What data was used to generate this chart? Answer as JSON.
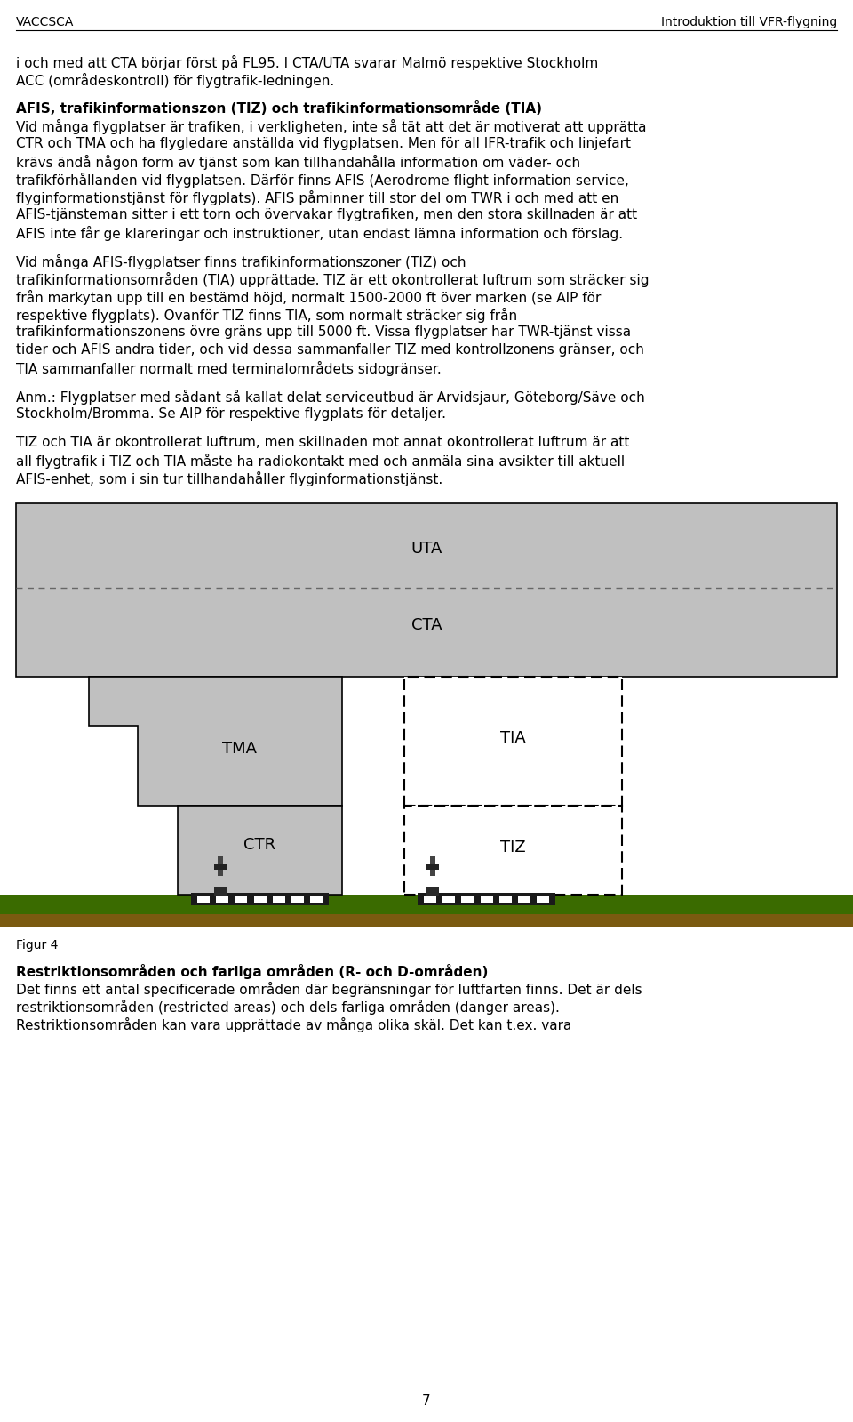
{
  "header_left": "VACCSCA",
  "header_right": "Introduktion till VFR-flygning",
  "page_number": "7",
  "figur_label": "Figur 4",
  "bg_color": "#ffffff",
  "text_color": "#000000",
  "gray_color": "#c0c0c0",
  "ground_green": "#3a6b00",
  "ground_brown": "#7a5a10",
  "p1_lines": [
    "i och med att CTA börjar först på FL95. I CTA/UTA svarar Malmö respektive Stockholm",
    "ACC (områdeskontroll) för flygtrafik­ledningen."
  ],
  "section1_title": "AFIS, trafikinformationszon (TIZ) och trafikinformationsområde (TIA)",
  "section1_lines": [
    "Vid många flygplatser är trafiken, i verkligheten, inte så tät att det är motiverat att upprätta",
    "CTR och TMA och ha flygledare anställda vid flygplatsen. Men för all IFR-trafik och linjefart",
    "krävs ändå någon form av tjänst som kan tillhandahålla information om väder- och",
    "trafikförhållanden vid flygplatsen. Därför finns AFIS (Aerodrome flight information service,",
    "flyginformationstjänst för flygplats). AFIS påminner till stor del om TWR i och med att en",
    "AFIS-tjänsteman sitter i ett torn och övervakar flygtrafiken, men den stora skillnaden är att",
    "AFIS inte får ge klareringar och instruktioner, utan endast lämna information och förslag."
  ],
  "p2_lines": [
    "Vid många AFIS-flygplatser finns trafikinformationszoner (TIZ) och",
    "trafikinformationsområden (TIA) upprättade. TIZ är ett okontrollerat luftrum som sträcker sig",
    "från markytan upp till en bestämd höjd, normalt 1500-2000 ft över marken (se AIP för",
    "respektive flygplats). Ovanför TIZ finns TIA, som normalt sträcker sig från",
    "trafikinformationszonens övre gräns upp till 5000 ft. Vissa flygplatser har TWR-tjänst vissa",
    "tider och AFIS andra tider, och vid dessa sammanfaller TIZ med kontrollzonens gränser, och",
    "TIA sammanfaller normalt med terminalområdets sidogränser."
  ],
  "anm_lines": [
    "Anm.: Flygplatser med sådant så kallat delat serviceutbud är Arvidsjaur, Göteborg/Säve och",
    "Stockholm/Bromma. Se AIP för respektive flygplats för detaljer."
  ],
  "p3_lines": [
    "TIZ och TIA är okontrollerat luftrum, men skillnaden mot annat okontrollerat luftrum är att",
    "all flygtrafik i TIZ och TIA måste ha radiokontakt med och anmäla sina avsikter till aktuell",
    "AFIS-enhet, som i sin tur tillhandahåller flyginformationstjänst."
  ],
  "section2_title": "Restriktionsområden och farliga områden (R- och D-områden)",
  "section2_lines": [
    "Det finns ett antal specificerade områden där begränsningar för luftfarten finns. Det är dels",
    "restriktionsområden (restricted areas) och dels farliga områden (danger areas).",
    "Restriktionsområden kan vara upprättade av många olika skäl. Det kan t.ex. vara"
  ]
}
